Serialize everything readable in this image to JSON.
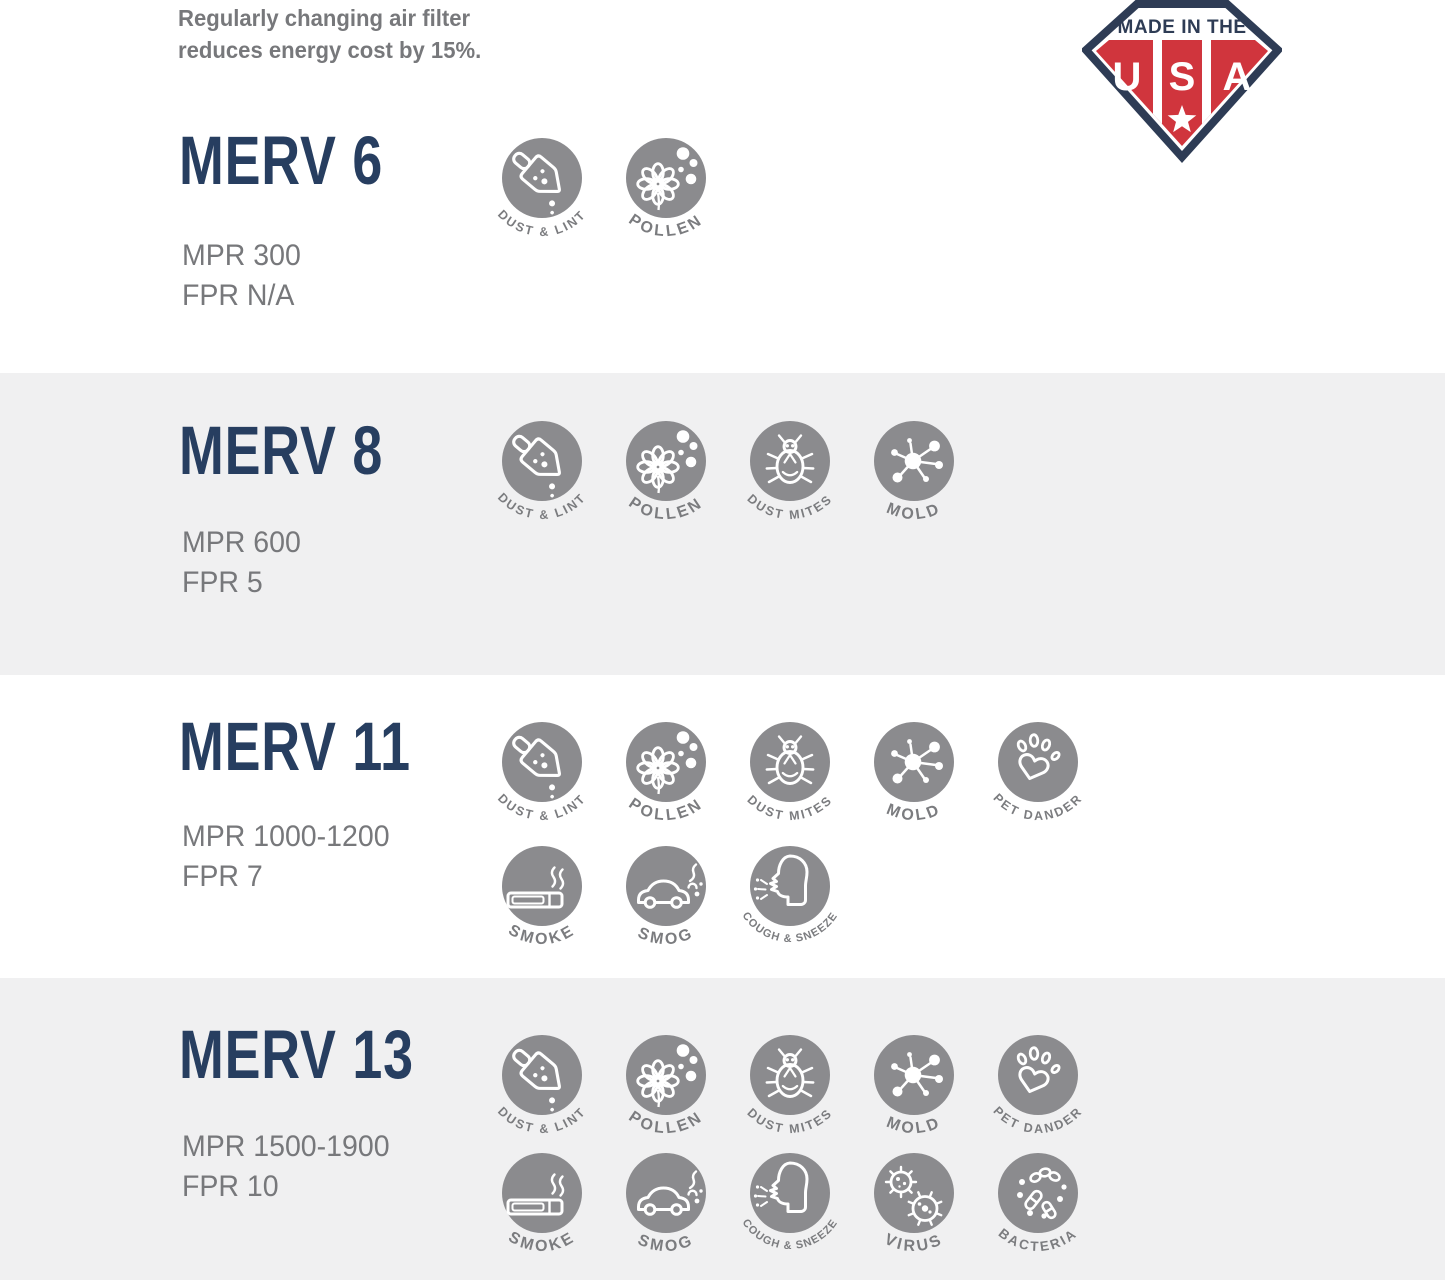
{
  "note": {
    "line1": "Regularly changing air filter",
    "line2": "reduces energy cost by 15%."
  },
  "badge": {
    "banner": "MADE IN THE",
    "letters": [
      "U",
      "S",
      "A"
    ]
  },
  "sections": [
    {
      "title": "MERV 6",
      "mpr": "MPR 300",
      "fpr": "FPR N/A",
      "icon_rows": [
        [
          "dust-lint",
          "pollen"
        ]
      ]
    },
    {
      "title": "MERV 8",
      "mpr": "MPR 600",
      "fpr": "FPR 5",
      "icon_rows": [
        [
          "dust-lint",
          "pollen",
          "dust-mites",
          "mold"
        ]
      ]
    },
    {
      "title": "MERV 11",
      "mpr": "MPR 1000-1200",
      "fpr": "FPR 7",
      "icon_rows": [
        [
          "dust-lint",
          "pollen",
          "dust-mites",
          "mold",
          "pet-dander"
        ],
        [
          "smoke",
          "smog",
          "cough-sneeze"
        ]
      ]
    },
    {
      "title": "MERV 13",
      "mpr": "MPR 1500-1900",
      "fpr": "FPR 10",
      "icon_rows": [
        [
          "dust-lint",
          "pollen",
          "dust-mites",
          "mold",
          "pet-dander"
        ],
        [
          "smoke",
          "smog",
          "cough-sneeze",
          "virus",
          "bacteria"
        ]
      ]
    }
  ],
  "icons": {
    "dust-lint": {
      "label": "DUST & LINT"
    },
    "pollen": {
      "label": "POLLEN"
    },
    "dust-mites": {
      "label": "DUST MITES"
    },
    "mold": {
      "label": "MOLD"
    },
    "pet-dander": {
      "label": "PET DANDER"
    },
    "smoke": {
      "label": "SMOKE"
    },
    "smog": {
      "label": "SMOG"
    },
    "cough-sneeze": {
      "label": "COUGH & SNEEZE"
    },
    "virus": {
      "label": "VIRUS"
    },
    "bacteria": {
      "label": "BACTERIA"
    }
  },
  "colors": {
    "heading_navy": "#273e60",
    "text_gray": "#77787b",
    "icon_circle": "#8b8b8e",
    "icon_label": "#7b7c7f",
    "band_gray": "#f0f0f1",
    "badge_navy": "#2e3c55",
    "badge_red": "#d0353d",
    "glyph_white": "#ffffff"
  }
}
